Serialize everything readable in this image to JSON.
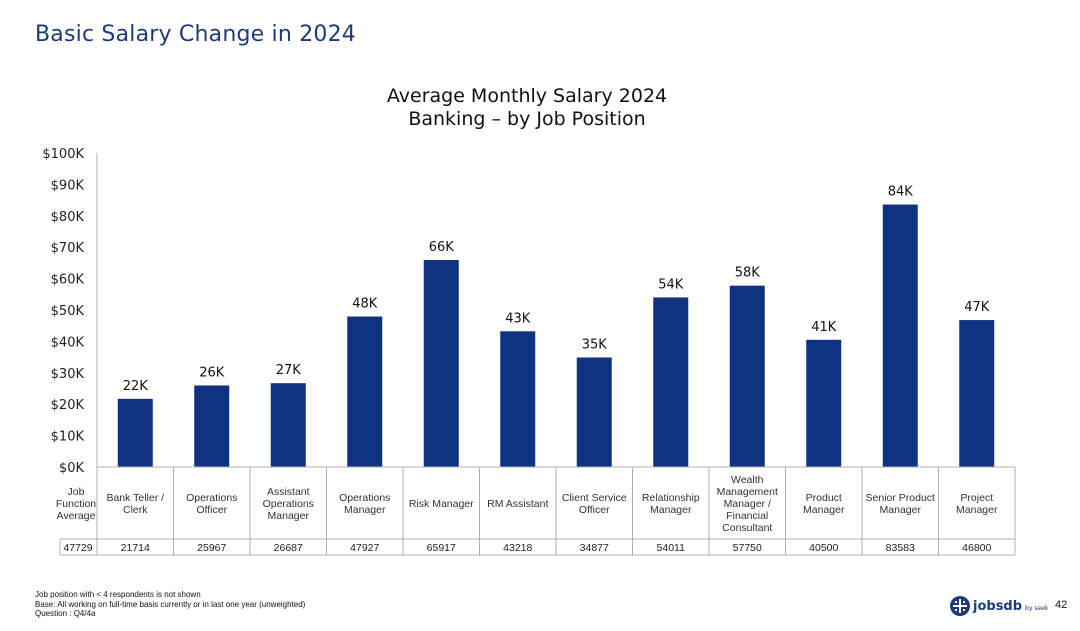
{
  "slide": {
    "title": "Basic Salary Change in 2024",
    "footnotes": [
      "Job position with < 4 respondents is not shown",
      "Base: All working on full-time basis currently or in last one year (unweighted)",
      "Question : Q4/4a"
    ],
    "page_number": "42",
    "brand": {
      "word": "jobsdb",
      "sub": "by seek",
      "icon": "jobsdb-logo-icon"
    }
  },
  "colors": {
    "bar": "#0f3380",
    "title": "#1c3a80",
    "table_border": "#b0b0b0"
  },
  "chart_data": {
    "type": "bar",
    "title_lines": [
      "Average Monthly Salary 2024",
      "Banking – by Job Position"
    ],
    "categories": [
      [
        "Bank Teller /",
        "Clerk"
      ],
      [
        "Operations",
        "Officer"
      ],
      [
        "Assistant",
        "Operations",
        "Manager"
      ],
      [
        "Operations",
        "Manager"
      ],
      [
        "Risk Manager"
      ],
      [
        "RM Assistant"
      ],
      [
        "Client Service",
        "Officer"
      ],
      [
        "Relationship",
        "Manager"
      ],
      [
        "Wealth",
        "Management",
        "Manager /",
        "Financial",
        "Consultant"
      ],
      [
        "Product",
        "Manager"
      ],
      [
        "Senior Product",
        "Manager"
      ],
      [
        "Project",
        "Manager"
      ]
    ],
    "values": [
      21714,
      25967,
      26687,
      47927,
      65917,
      43218,
      34877,
      54011,
      57750,
      40500,
      83583,
      46800
    ],
    "data_labels": [
      "22K",
      "26K",
      "27K",
      "48K",
      "66K",
      "43K",
      "35K",
      "54K",
      "58K",
      "41K",
      "84K",
      "47K"
    ],
    "yticks": [
      0,
      10000,
      20000,
      30000,
      40000,
      50000,
      60000,
      70000,
      80000,
      90000,
      100000
    ],
    "ytick_labels": [
      "$0K",
      "$10K",
      "$20K",
      "$30K",
      "$40K",
      "$50K",
      "$60K",
      "$70K",
      "$80K",
      "$90K",
      "$100K"
    ],
    "ylim": [
      0,
      100000
    ],
    "grid": false,
    "legend": "none",
    "table": {
      "row_header": [
        "Job",
        "Function",
        "Average"
      ],
      "function_average": "47729",
      "values": [
        "21714",
        "25967",
        "26687",
        "47927",
        "65917",
        "43218",
        "34877",
        "54011",
        "57750",
        "40500",
        "83583",
        "46800"
      ]
    }
  }
}
